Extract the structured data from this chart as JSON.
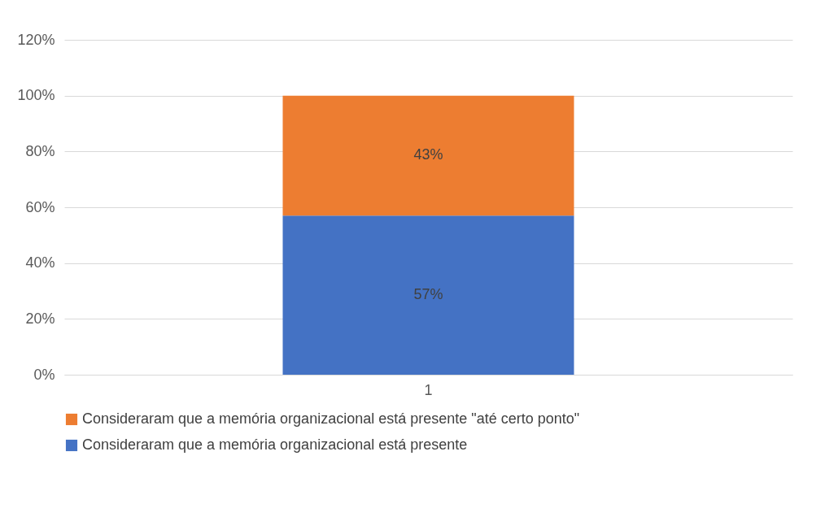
{
  "chart_data": {
    "type": "bar",
    "stacked": true,
    "categories": [
      "1"
    ],
    "series": [
      {
        "name": "Consideraram que a memória organizacional está presente",
        "color": "#4472c4",
        "values": [
          57
        ],
        "value_labels": [
          "57%"
        ]
      },
      {
        "name": "Consideraram que a memória organizacional está presente \"até certo ponto\"",
        "color": "#ed7d31",
        "values": [
          43
        ],
        "value_labels": [
          "43%"
        ]
      }
    ],
    "ylim": [
      0,
      120
    ],
    "yticks": [
      {
        "value": 0,
        "label": "0%"
      },
      {
        "value": 20,
        "label": "20%"
      },
      {
        "value": 40,
        "label": "40%"
      },
      {
        "value": 60,
        "label": "60%"
      },
      {
        "value": 80,
        "label": "80%"
      },
      {
        "value": 100,
        "label": "100%"
      },
      {
        "value": 120,
        "label": "120%"
      }
    ],
    "grid": "y",
    "legend": "bottom"
  }
}
